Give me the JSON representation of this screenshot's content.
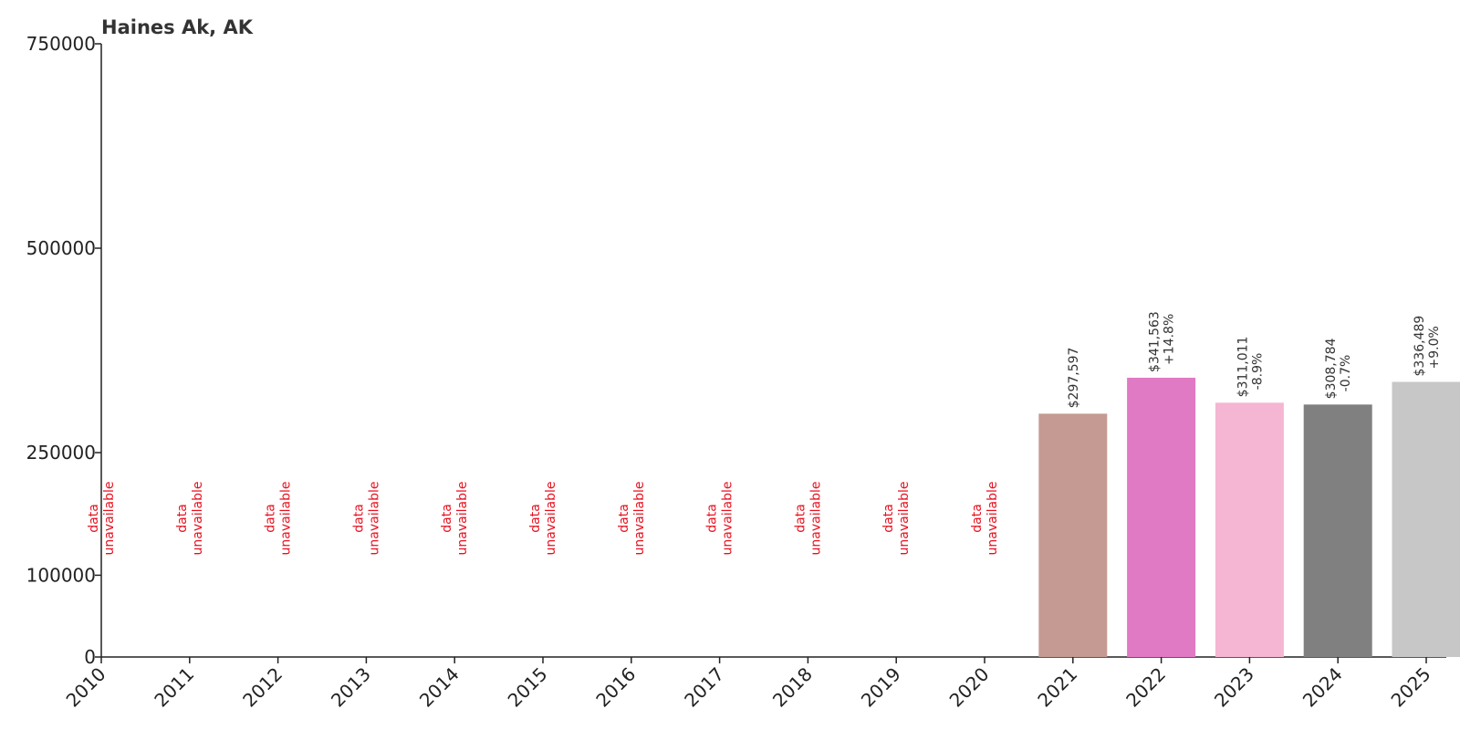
{
  "chart_data": {
    "type": "bar",
    "title": "Haines Ak, AK",
    "xlabel": "",
    "ylabel": "",
    "ylim": [
      0,
      750000
    ],
    "y_ticks": [
      0,
      100000,
      250000,
      500000,
      750000
    ],
    "y_tick_labels": [
      "0",
      "100000",
      "250000",
      "500000",
      "750000"
    ],
    "grid": false,
    "categories": [
      "2010",
      "2011",
      "2012",
      "2013",
      "2014",
      "2015",
      "2016",
      "2017",
      "2018",
      "2019",
      "2020",
      "2021",
      "2022",
      "2023",
      "2024",
      "2025"
    ],
    "values": [
      null,
      null,
      null,
      null,
      null,
      null,
      null,
      null,
      null,
      null,
      null,
      297597,
      341563,
      311011,
      308784,
      336489
    ],
    "colors": [
      "#c49a92",
      "#c49a92",
      "#c49a92",
      "#c49a92",
      "#c49a92",
      "#c49a92",
      "#c49a92",
      "#c49a92",
      "#c49a92",
      "#c49a92",
      "#c49a92",
      "#c49a92",
      "#e07ac4",
      "#f5b6d3",
      "#808080",
      "#c7c7c7"
    ],
    "value_labels": [
      "",
      "",
      "",
      "",
      "",
      "",
      "",
      "",
      "",
      "",
      "",
      "$297,597",
      "$341,563",
      "$311,011",
      "$308,784",
      "$336,489"
    ],
    "change_labels": [
      "",
      "",
      "",
      "",
      "",
      "",
      "",
      "",
      "",
      "",
      "",
      "",
      "+14.8%",
      "-8.9%",
      "-0.7%",
      "+9.0%"
    ],
    "unavailable_label": [
      "data",
      "unavailable"
    ],
    "unavailable_color": "#e8101e"
  }
}
